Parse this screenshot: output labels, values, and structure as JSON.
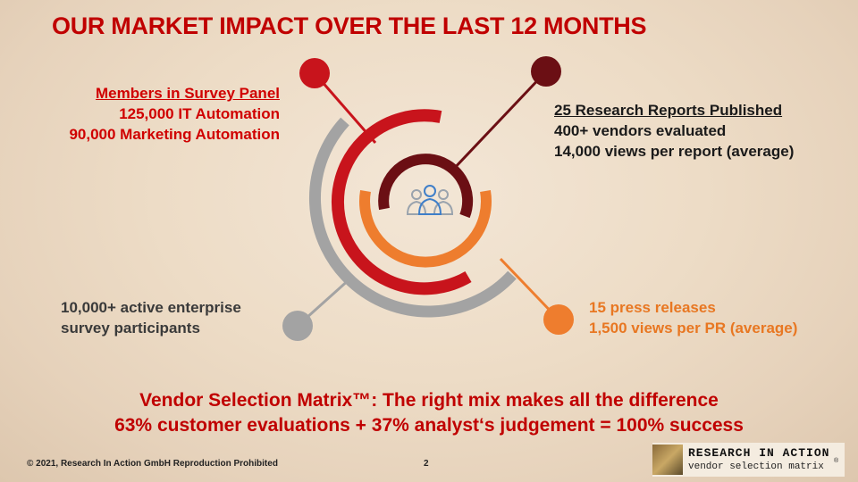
{
  "title": "OUR MARKET IMPACT OVER THE LAST 12 MONTHS",
  "top_left": {
    "heading": "Members in Survey Panel",
    "lines": [
      "125,000 IT Automation",
      "90,000 Marketing Automation"
    ]
  },
  "top_right": {
    "heading": "25 Research Reports Published",
    "lines": [
      "400+ vendors evaluated",
      "14,000 views per report (average)"
    ]
  },
  "bottom_left": {
    "lines": [
      "10,000+ active enterprise",
      "survey participants"
    ]
  },
  "bottom_right": {
    "lines": [
      "15 press releases",
      "1,500 views per PR (average)"
    ]
  },
  "tagline": [
    "Vendor Selection Matrix™: The right mix makes all the difference",
    "63% customer evaluations + 37% analyst‘s judgement = 100% success"
  ],
  "footer": {
    "copyright": "© 2021, Research In Action GmbH Reproduction Prohibited",
    "page": "2"
  },
  "logo": {
    "name": "RESEARCH IN ACTION",
    "tagline": "vendor selection matrix",
    "mark": "®"
  }
}
